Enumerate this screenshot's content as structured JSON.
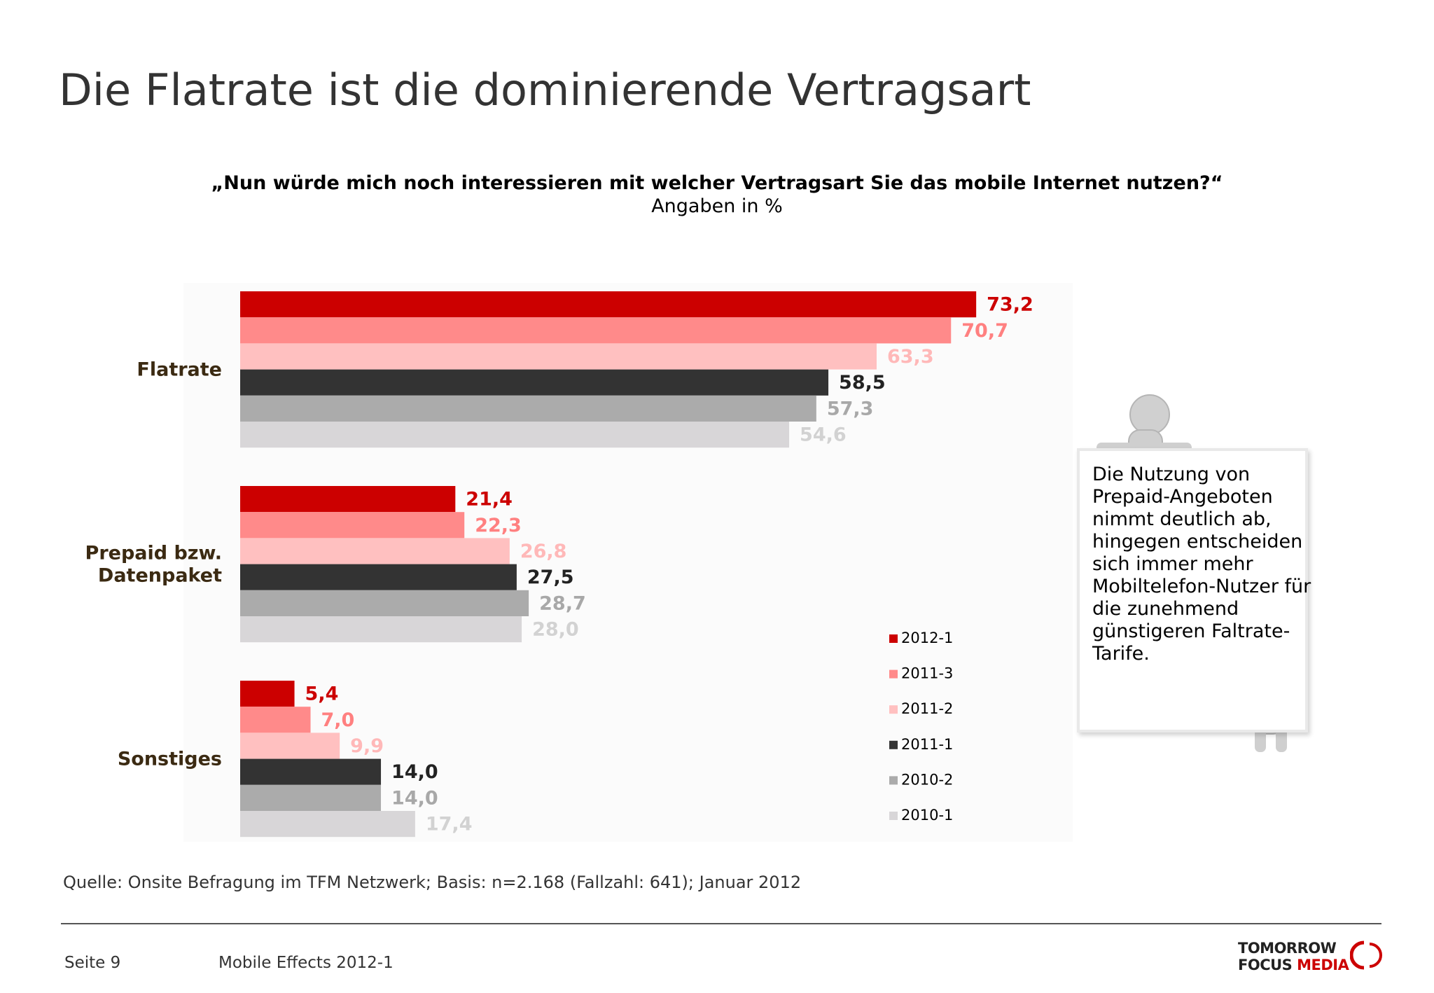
{
  "title": "Die Flatrate ist die dominierende Vertragsart",
  "question": "„Nun würde mich noch interessieren mit welcher Vertragsart Sie das mobile Internet nutzen?“",
  "unit": "Angaben in %",
  "chart_data": {
    "type": "bar",
    "orientation": "horizontal",
    "categories": [
      "Flatrate",
      "Prepaid bzw. Datenpaket",
      "Sonstiges"
    ],
    "category_lines": [
      [
        "Flatrate"
      ],
      [
        "Prepaid bzw.",
        "Datenpaket"
      ],
      [
        "Sonstiges"
      ]
    ],
    "series": [
      {
        "name": "2012-1",
        "color": "#cc0000",
        "label_color": "#cc0000",
        "values": [
          73.2,
          21.4,
          5.4
        ],
        "labels": [
          "73,2",
          "21,4",
          "5,4"
        ]
      },
      {
        "name": "2011-3",
        "color": "#ff8a8a",
        "label_color": "#ff8080",
        "values": [
          70.7,
          22.3,
          7.0
        ],
        "labels": [
          "70,7",
          "22,3",
          "7,0"
        ]
      },
      {
        "name": "2011-2",
        "color": "#ffc0c0",
        "label_color": "#ffb8b8",
        "values": [
          63.3,
          26.8,
          9.9
        ],
        "labels": [
          "63,3",
          "26,8",
          "9,9"
        ]
      },
      {
        "name": "2011-1",
        "color": "#333333",
        "label_color": "#222222",
        "values": [
          58.5,
          27.5,
          14.0
        ],
        "labels": [
          "58,5",
          "27,5",
          "14,0"
        ]
      },
      {
        "name": "2010-2",
        "color": "#ababab",
        "label_color": "#a8a8a8",
        "values": [
          57.3,
          28.7,
          14.0
        ],
        "labels": [
          "57,3",
          "28,7",
          "14,0"
        ]
      },
      {
        "name": "2010-1",
        "color": "#d8d6d8",
        "label_color": "#d2d2d2",
        "values": [
          54.6,
          28.0,
          17.4
        ],
        "labels": [
          "54,6",
          "28,0",
          "17,4"
        ]
      }
    ],
    "xlim": [
      0,
      100
    ],
    "grid": false,
    "legend": "right"
  },
  "note": "Die Nutzung von Prepaid-Angeboten nimmt deutlich ab, hingegen entscheiden sich immer mehr Mobiltelefon-Nutzer für die zunehmend günstigeren Faltrate-Tarife.",
  "source": "Quelle: Onsite Befragung im TFM Netzwerk; Basis: n=2.168 (Fallzahl: 641); Januar 2012",
  "footer": {
    "page": "Seite 9",
    "report": "Mobile Effects 2012-1",
    "logo_line1": "TOMORROW",
    "logo_line2a": "FOCUS",
    "logo_line2b": "MEDIA"
  },
  "colors": {
    "accent": "#cc0000",
    "text": "#333333"
  }
}
